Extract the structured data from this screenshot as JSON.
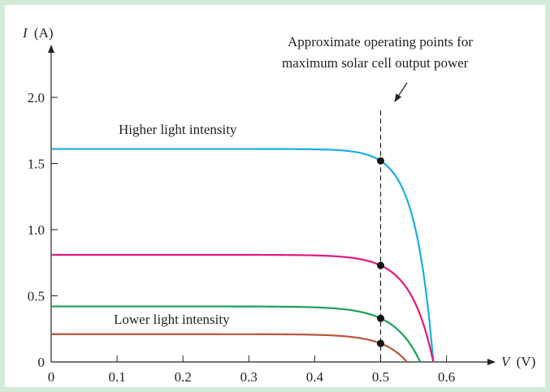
{
  "chart_data": {
    "type": "line",
    "title": "",
    "xlabel": {
      "symbol": "V",
      "unit": "(V)"
    },
    "ylabel": {
      "symbol": "I",
      "unit": "(A)"
    },
    "xlim": [
      0,
      0.65
    ],
    "ylim": [
      0,
      2.3
    ],
    "xticks": [
      "0",
      "0.1",
      "0.2",
      "0.3",
      "0.4",
      "0.5",
      "0.6"
    ],
    "yticks": [
      "0",
      "0.5",
      "1.0",
      "1.5",
      "2.0"
    ],
    "grid": false,
    "series": [
      {
        "color": "#1aaee0",
        "isc": 1.61,
        "voc": 0.58,
        "mpp": [
          0.5,
          1.52
        ]
      },
      {
        "color": "#e0197d",
        "isc": 0.81,
        "voc": 0.58,
        "mpp": [
          0.5,
          0.73
        ]
      },
      {
        "color": "#1d9e58",
        "isc": 0.42,
        "voc": 0.56,
        "mpp": [
          0.5,
          0.33
        ]
      },
      {
        "color": "#b5553b",
        "isc": 0.21,
        "voc": 0.54,
        "mpp": [
          0.5,
          0.14
        ]
      }
    ],
    "annotations": {
      "higher": "Higher light intensity",
      "lower": "Lower light intensity",
      "operating_line1": "Approximate operating points for",
      "operating_line2": "maximum solar cell output power"
    },
    "operating_voltage": 0.5
  }
}
